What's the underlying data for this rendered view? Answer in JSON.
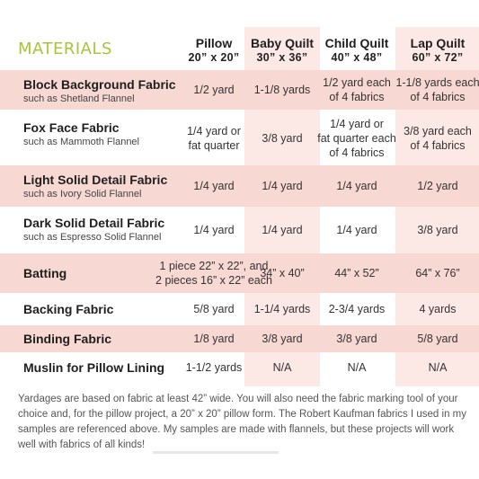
{
  "heading": "MATERIALS",
  "columns": [
    {
      "name": "Pillow",
      "size": "20” x 20”"
    },
    {
      "name": "Baby Quilt",
      "size": "30” x 36”"
    },
    {
      "name": "Child Quilt",
      "size": "40” x 48”"
    },
    {
      "name": "Lap Quilt",
      "size": "60” x 72”"
    }
  ],
  "rows": [
    {
      "title": "Block Background Fabric",
      "sub": "such as Shetland Flannel",
      "cells": [
        "1/2 yard",
        "1-1/8 yards",
        "1/2 yard each\nof 4 fabrics",
        "1-1/8 yards each\nof 4 fabrics"
      ]
    },
    {
      "title": "Fox Face Fabric",
      "sub": "such as Mammoth Flannel",
      "cells": [
        "1/4 yard or\nfat quarter",
        "3/8 yard",
        "1/4 yard or\nfat quarter each\nof 4 fabrics",
        "3/8 yard each\nof 4 fabrics"
      ]
    },
    {
      "title": "Light Solid Detail Fabric",
      "sub": "such as Ivory Solid Flannel",
      "cells": [
        "1/4 yard",
        "1/4 yard",
        "1/4 yard",
        "1/2 yard"
      ]
    },
    {
      "title": "Dark Solid Detail Fabric",
      "sub": "such as Espresso Solid Flannel",
      "cells": [
        "1/4 yard",
        "1/4 yard",
        "1/4 yard",
        "3/8 yard"
      ]
    },
    {
      "title": "Batting",
      "sub": "",
      "cells": [
        "1 piece 22” x 22”, and\n2 pieces 16” x 22” each",
        "34” x 40”",
        "44” x 52”",
        "64” x 76”"
      ]
    },
    {
      "title": "Backing Fabric",
      "sub": "",
      "cells": [
        "5/8 yard",
        "1-1/4 yards",
        "2-3/4 yards",
        "4 yards"
      ]
    },
    {
      "title": "Binding Fabric",
      "sub": "",
      "cells": [
        "1/8 yard",
        "3/8 yard",
        "3/8 yard",
        "5/8 yard"
      ]
    },
    {
      "title": "Muslin for Pillow Lining",
      "sub": "",
      "cells": [
        "1-1/2 yards",
        "N/A",
        "N/A",
        "N/A"
      ]
    }
  ],
  "note": "Yardages are based on fabric at least 42” wide. You will also need the fabric marking tool of your choice and, for the pillow project, a 20” x 20” pillow form. The Robert Kaufman fabrics I used in my samples are referenced above. My samples are made with flannels, but these projects will work well with fabrics of all kinds!",
  "colors": {
    "heading": "#a8c43a",
    "row_pink": "#f8d8d3",
    "column_shade": "#fce9e5"
  }
}
